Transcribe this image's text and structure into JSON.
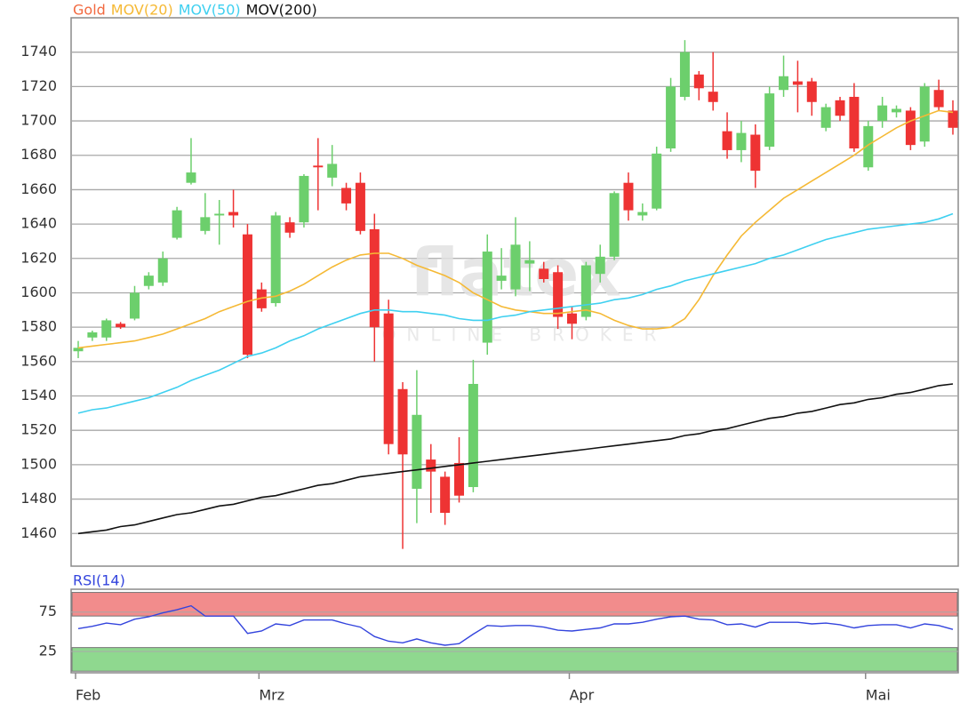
{
  "chart_data": [
    {
      "type": "candlestick",
      "categories": [
        "Feb",
        null,
        null,
        null,
        null,
        null,
        null,
        null,
        null,
        null,
        null,
        null,
        null,
        "Mrz",
        null,
        null,
        null,
        null,
        null,
        null,
        null,
        null,
        null,
        null,
        null,
        null,
        null,
        null,
        null,
        null,
        null,
        null,
        null,
        null,
        null,
        "Apr",
        null,
        null,
        null,
        null,
        null,
        null,
        null,
        null,
        null,
        null,
        null,
        null,
        null,
        null,
        null,
        null,
        null,
        null,
        null,
        null,
        "Mai",
        null,
        null,
        null,
        null,
        null,
        null
      ],
      "series": [
        {
          "name": "Gold",
          "type": "candlestick",
          "color": "#f2693f",
          "up_color": "#6ccf6c",
          "down_color": "#ee3333",
          "open": [
            1566,
            1574,
            1574,
            1582,
            1585,
            1604,
            1606,
            1632,
            1664,
            1636,
            1645,
            1647,
            1634,
            1602,
            1594,
            1641,
            1641,
            1674,
            1667,
            1661,
            1664,
            1637,
            1588,
            1544,
            1486,
            1503,
            1493,
            1501,
            1487,
            1571,
            1607,
            1602,
            1617,
            1614,
            1612,
            1588,
            1586,
            1611,
            1621,
            1664,
            1645,
            1649,
            1684,
            1714,
            1727,
            1717,
            1694,
            1683,
            1692,
            1685,
            1718,
            1723,
            1723,
            1696,
            1712,
            1714,
            1673,
            1700,
            1705,
            1706,
            1688,
            1718,
            1706
          ],
          "high": [
            1572,
            1578,
            1585,
            1583,
            1604,
            1612,
            1624,
            1650,
            1690,
            1658,
            1654,
            1660,
            1640,
            1606,
            1647,
            1644,
            1669,
            1690,
            1686,
            1664,
            1670,
            1646,
            1596,
            1548,
            1555,
            1512,
            1496,
            1516,
            1561,
            1634,
            1626,
            1644,
            1630,
            1618,
            1616,
            1592,
            1618,
            1628,
            1659,
            1670,
            1652,
            1685,
            1725,
            1747,
            1729,
            1740,
            1705,
            1700,
            1698,
            1720,
            1738,
            1735,
            1725,
            1710,
            1714,
            1722,
            1700,
            1714,
            1709,
            1708,
            1722,
            1724,
            1712
          ],
          "low": [
            1562,
            1572,
            1572,
            1579,
            1584,
            1602,
            1604,
            1631,
            1663,
            1634,
            1628,
            1638,
            1562,
            1589,
            1592,
            1632,
            1638,
            1648,
            1662,
            1648,
            1634,
            1560,
            1506,
            1451,
            1466,
            1472,
            1465,
            1478,
            1484,
            1564,
            1602,
            1598,
            1601,
            1606,
            1579,
            1573,
            1584,
            1606,
            1619,
            1642,
            1642,
            1648,
            1682,
            1712,
            1712,
            1706,
            1678,
            1676,
            1661,
            1683,
            1714,
            1705,
            1703,
            1694,
            1700,
            1682,
            1671,
            1696,
            1702,
            1683,
            1685,
            1706,
            1692
          ],
          "close": [
            1568,
            1577,
            1584,
            1580,
            1600,
            1610,
            1620,
            1648,
            1670,
            1644,
            1646,
            1645,
            1564,
            1591,
            1645,
            1635,
            1668,
            1673,
            1675,
            1652,
            1636,
            1580,
            1512,
            1506,
            1529,
            1496,
            1472,
            1482,
            1547,
            1624,
            1610,
            1628,
            1619,
            1608,
            1586,
            1582,
            1616,
            1621,
            1658,
            1648,
            1647,
            1681,
            1720,
            1740,
            1719,
            1711,
            1683,
            1693,
            1671,
            1716,
            1726,
            1721,
            1711,
            1708,
            1703,
            1684,
            1697,
            1709,
            1707,
            1686,
            1720,
            1708,
            1696
          ]
        },
        {
          "name": "MOV(20)",
          "type": "line",
          "color": "#f5b935",
          "values": [
            1568,
            1569,
            1570,
            1571,
            1572,
            1574,
            1576,
            1579,
            1582,
            1585,
            1589,
            1592,
            1595,
            1597,
            1598,
            1601,
            1605,
            1610,
            1615,
            1619,
            1622,
            1623,
            1623,
            1620,
            1616,
            1613,
            1610,
            1606,
            1600,
            1596,
            1592,
            1590,
            1589,
            1588,
            1588,
            1589,
            1590,
            1588,
            1584,
            1581,
            1579,
            1579,
            1580,
            1585,
            1596,
            1610,
            1622,
            1633,
            1641,
            1648,
            1655,
            1660,
            1665,
            1670,
            1675,
            1680,
            1686,
            1691,
            1696,
            1700,
            1703,
            1706,
            1705
          ]
        },
        {
          "name": "MOV(50)",
          "type": "line",
          "color": "#3fd0f0",
          "values": [
            1530,
            1532,
            1533,
            1535,
            1537,
            1539,
            1542,
            1545,
            1549,
            1552,
            1555,
            1559,
            1563,
            1565,
            1568,
            1572,
            1575,
            1579,
            1582,
            1585,
            1588,
            1590,
            1590,
            1589,
            1589,
            1588,
            1587,
            1585,
            1584,
            1584,
            1586,
            1587,
            1589,
            1590,
            1591,
            1592,
            1593,
            1594,
            1596,
            1597,
            1599,
            1602,
            1604,
            1607,
            1609,
            1611,
            1613,
            1615,
            1617,
            1620,
            1622,
            1625,
            1628,
            1631,
            1633,
            1635,
            1637,
            1638,
            1639,
            1640,
            1641,
            1643,
            1646
          ]
        },
        {
          "name": "MOV(200)",
          "type": "line",
          "color": "#111111",
          "values": [
            1460,
            1461,
            1462,
            1464,
            1465,
            1467,
            1469,
            1471,
            1472,
            1474,
            1476,
            1477,
            1479,
            1481,
            1482,
            1484,
            1486,
            1488,
            1489,
            1491,
            1493,
            1494,
            1495,
            1496,
            1497,
            1498,
            1499,
            1500,
            1501,
            1502,
            1503,
            1504,
            1505,
            1506,
            1507,
            1508,
            1509,
            1510,
            1511,
            1512,
            1513,
            1514,
            1515,
            1517,
            1518,
            1520,
            1521,
            1523,
            1525,
            1527,
            1528,
            1530,
            1531,
            1533,
            1535,
            1536,
            1538,
            1539,
            1541,
            1542,
            1544,
            1546,
            1547
          ]
        }
      ],
      "ylim": [
        1441,
        1760
      ],
      "yticks": [
        1460,
        1480,
        1500,
        1520,
        1540,
        1560,
        1580,
        1600,
        1620,
        1640,
        1660,
        1680,
        1700,
        1720,
        1740
      ],
      "grid": true,
      "watermark": {
        "logo": "flatex",
        "tagline": "ONLINE BROKER"
      }
    },
    {
      "type": "line",
      "title": "RSI(14)",
      "color": "#3344dd",
      "values": [
        54,
        57,
        61,
        59,
        66,
        69,
        74,
        78,
        83,
        70,
        70,
        70,
        48,
        51,
        60,
        58,
        65,
        65,
        65,
        60,
        56,
        44,
        38,
        36,
        41,
        36,
        33,
        35,
        47,
        58,
        57,
        58,
        58,
        56,
        52,
        51,
        53,
        55,
        60,
        60,
        62,
        66,
        69,
        70,
        66,
        65,
        59,
        60,
        56,
        62,
        62,
        62,
        60,
        61,
        59,
        55,
        58,
        59,
        59,
        55,
        60,
        58,
        53
      ],
      "ylim": [
        -2,
        104
      ],
      "yticks": [
        25,
        75
      ],
      "bands": [
        {
          "from": 70,
          "to": 100,
          "color": "#f28c8c"
        },
        {
          "from": 0,
          "to": 30,
          "color": "#8fd88f"
        }
      ]
    }
  ]
}
